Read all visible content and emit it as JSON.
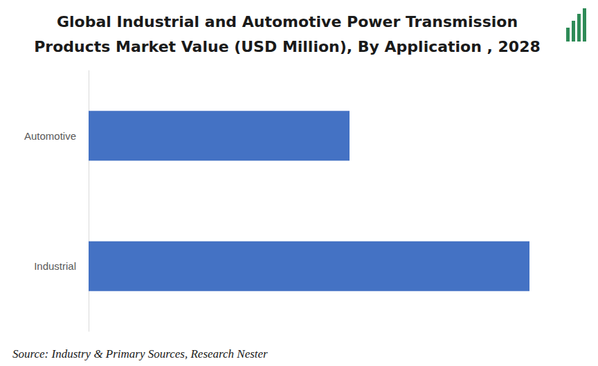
{
  "chart_data": {
    "type": "bar",
    "orientation": "horizontal",
    "title": "Global Industrial and Automotive Power Transmission\nProducts Market Value (USD Million), By Application , 2028",
    "source": "Source: Industry & Primary Sources, Research Nester",
    "categories": [
      "Automotive",
      "Industrial"
    ],
    "values": [
      377,
      637
    ],
    "color": "#4472c4",
    "xlim": [
      0,
      700
    ],
    "grid": false,
    "tick_labels": "y"
  }
}
